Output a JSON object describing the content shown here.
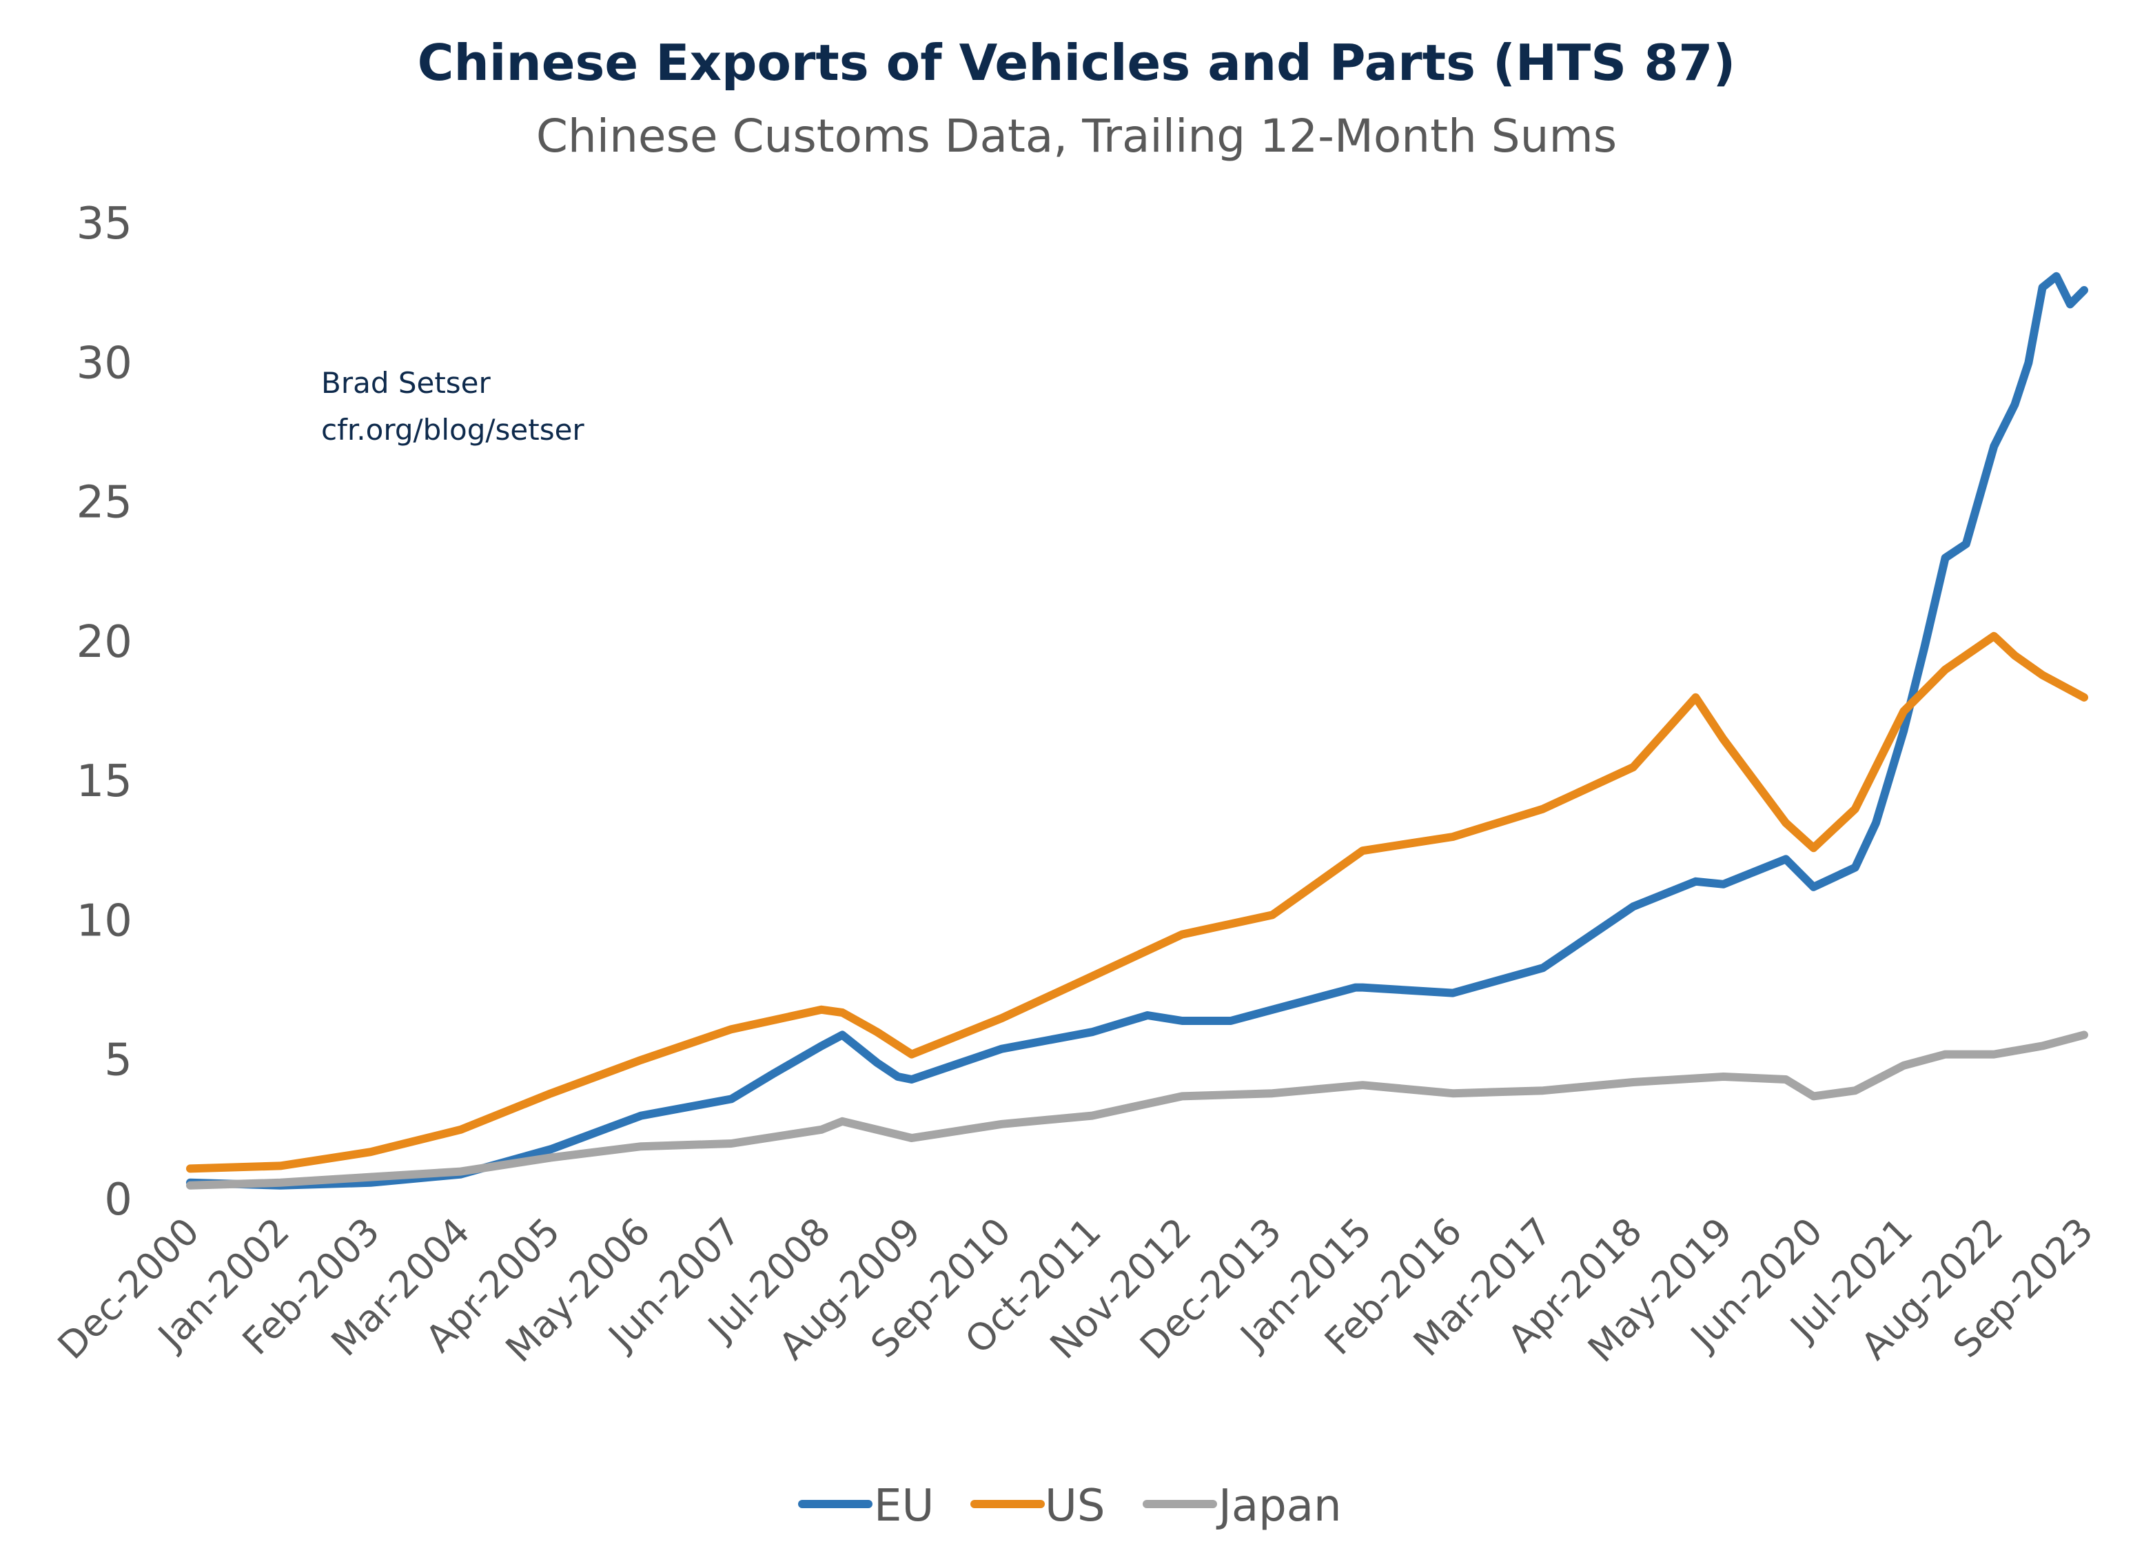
{
  "chart_data": {
    "type": "line",
    "title": "Chinese Exports of Vehicles and Parts (HTS 87)",
    "subtitle": "Chinese Customs Data, Trailing 12-Month Sums",
    "annotation": [
      "Brad Setser",
      "cfr.org/blog/setser"
    ],
    "xlabel": "",
    "ylabel": "",
    "ylim": [
      0,
      35
    ],
    "yticks": [
      "0",
      "5",
      "10",
      "15",
      "20",
      "25",
      "30",
      "35"
    ],
    "xticks": [
      "Dec-2000",
      "Jan-2002",
      "Feb-2003",
      "Mar-2004",
      "Apr-2005",
      "May-2006",
      "Jun-2007",
      "Jul-2008",
      "Aug-2009",
      "Sep-2010",
      "Oct-2011",
      "Nov-2012",
      "Dec-2013",
      "Jan-2015",
      "Feb-2016",
      "Mar-2017",
      "Apr-2018",
      "May-2019",
      "Jun-2020",
      "Jul-2021",
      "Aug-2022",
      "Sep-2023"
    ],
    "xlim": [
      "Dec-2000",
      "Sep-2023"
    ],
    "grid": false,
    "legend_position": "bottom",
    "series": [
      {
        "name": "EU",
        "color": "#2e75b6",
        "points": [
          [
            "Dec-2000",
            0.6
          ],
          [
            "Jan-2002",
            0.5
          ],
          [
            "Feb-2003",
            0.6
          ],
          [
            "Mar-2004",
            0.9
          ],
          [
            "Apr-2005",
            1.8
          ],
          [
            "May-2006",
            3.0
          ],
          [
            "Jun-2007",
            3.6
          ],
          [
            "Dec-2007",
            4.5
          ],
          [
            "Jul-2008",
            5.5
          ],
          [
            "Oct-2008",
            5.9
          ],
          [
            "Mar-2009",
            4.9
          ],
          [
            "Jun-2009",
            4.4
          ],
          [
            "Aug-2009",
            4.3
          ],
          [
            "Sep-2010",
            5.4
          ],
          [
            "Oct-2011",
            6.0
          ],
          [
            "Jun-2012",
            6.6
          ],
          [
            "Nov-2012",
            6.4
          ],
          [
            "Jun-2013",
            6.4
          ],
          [
            "Dec-2013",
            6.8
          ],
          [
            "Dec-2014",
            7.6
          ],
          [
            "Jan-2015",
            7.6
          ],
          [
            "Feb-2016",
            7.4
          ],
          [
            "Mar-2017",
            8.3
          ],
          [
            "Apr-2018",
            10.5
          ],
          [
            "Jan-2019",
            11.4
          ],
          [
            "May-2019",
            11.3
          ],
          [
            "Feb-2020",
            12.2
          ],
          [
            "Jun-2020",
            11.2
          ],
          [
            "Dec-2020",
            11.9
          ],
          [
            "Mar-2021",
            13.5
          ],
          [
            "Jul-2021",
            16.8
          ],
          [
            "Oct-2021",
            19.8
          ],
          [
            "Jan-2022",
            23.0
          ],
          [
            "Apr-2022",
            23.5
          ],
          [
            "Aug-2022",
            27.0
          ],
          [
            "Nov-2022",
            28.5
          ],
          [
            "Jan-2023",
            30.0
          ],
          [
            "Mar-2023",
            32.7
          ],
          [
            "May-2023",
            33.1
          ],
          [
            "Jul-2023",
            32.1
          ],
          [
            "Sep-2023",
            32.6
          ]
        ]
      },
      {
        "name": "US",
        "color": "#e8891a",
        "points": [
          [
            "Dec-2000",
            1.1
          ],
          [
            "Jan-2002",
            1.2
          ],
          [
            "Feb-2003",
            1.7
          ],
          [
            "Mar-2004",
            2.5
          ],
          [
            "Apr-2005",
            3.8
          ],
          [
            "May-2006",
            5.0
          ],
          [
            "Jun-2007",
            6.1
          ],
          [
            "Jul-2008",
            6.8
          ],
          [
            "Oct-2008",
            6.7
          ],
          [
            "Mar-2009",
            6.0
          ],
          [
            "Aug-2009",
            5.2
          ],
          [
            "Sep-2010",
            6.5
          ],
          [
            "Oct-2011",
            8.0
          ],
          [
            "Nov-2012",
            9.5
          ],
          [
            "Dec-2013",
            10.2
          ],
          [
            "Jan-2015",
            12.5
          ],
          [
            "Feb-2016",
            13.0
          ],
          [
            "Mar-2017",
            14.0
          ],
          [
            "Apr-2018",
            15.5
          ],
          [
            "Jan-2019",
            18.0
          ],
          [
            "May-2019",
            16.5
          ],
          [
            "Feb-2020",
            13.5
          ],
          [
            "Jun-2020",
            12.6
          ],
          [
            "Dec-2020",
            14.0
          ],
          [
            "Jul-2021",
            17.5
          ],
          [
            "Jan-2022",
            19.0
          ],
          [
            "Aug-2022",
            20.2
          ],
          [
            "Nov-2022",
            19.5
          ],
          [
            "Mar-2023",
            18.8
          ],
          [
            "Sep-2023",
            18.0
          ]
        ]
      },
      {
        "name": "Japan",
        "color": "#a5a5a5",
        "points": [
          [
            "Dec-2000",
            0.5
          ],
          [
            "Jan-2002",
            0.6
          ],
          [
            "Feb-2003",
            0.8
          ],
          [
            "Mar-2004",
            1.0
          ],
          [
            "Apr-2005",
            1.5
          ],
          [
            "May-2006",
            1.9
          ],
          [
            "Jun-2007",
            2.0
          ],
          [
            "Jul-2008",
            2.5
          ],
          [
            "Oct-2008",
            2.8
          ],
          [
            "Aug-2009",
            2.2
          ],
          [
            "Sep-2010",
            2.7
          ],
          [
            "Oct-2011",
            3.0
          ],
          [
            "Nov-2012",
            3.7
          ],
          [
            "Dec-2013",
            3.8
          ],
          [
            "Jan-2015",
            4.1
          ],
          [
            "Feb-2016",
            3.8
          ],
          [
            "Mar-2017",
            3.9
          ],
          [
            "Apr-2018",
            4.2
          ],
          [
            "May-2019",
            4.4
          ],
          [
            "Feb-2020",
            4.3
          ],
          [
            "Jun-2020",
            3.7
          ],
          [
            "Dec-2020",
            3.9
          ],
          [
            "Jul-2021",
            4.8
          ],
          [
            "Jan-2022",
            5.2
          ],
          [
            "Aug-2022",
            5.2
          ],
          [
            "Mar-2023",
            5.5
          ],
          [
            "Sep-2023",
            5.9
          ]
        ]
      }
    ]
  }
}
